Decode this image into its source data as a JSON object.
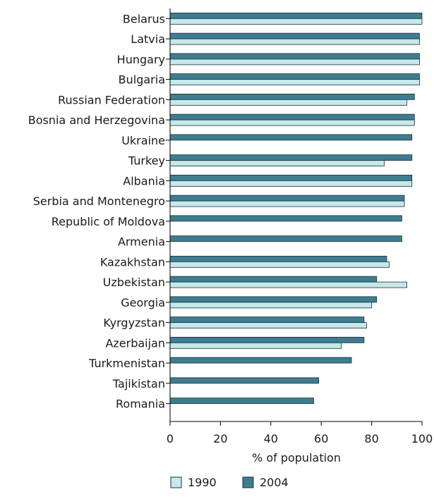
{
  "chart_data": {
    "type": "bar",
    "orientation": "horizontal",
    "categories": [
      "Belarus",
      "Latvia",
      "Hungary",
      "Bulgaria",
      "Russian Federation",
      "Bosnia and Herzegovina",
      "Ukraine",
      "Turkey",
      "Albania",
      "Serbia and Montenegro",
      "Republic of Moldova",
      "Armenia",
      "Kazakhstan",
      "Uzbekistan",
      "Georgia",
      "Kyrgyzstan",
      "Azerbaijan",
      "Turkmenistan",
      "Tajikistan",
      "Romania"
    ],
    "series": [
      {
        "name": "1990",
        "color": "#c5e8ea",
        "values": [
          100,
          99,
          99,
          99,
          94,
          97,
          null,
          85,
          96,
          93,
          null,
          null,
          87,
          94,
          80,
          78,
          68,
          null,
          null,
          null
        ]
      },
      {
        "name": "2004",
        "color": "#3e7d90",
        "values": [
          100,
          99,
          99,
          99,
          97,
          97,
          96,
          96,
          96,
          93,
          92,
          92,
          86,
          82,
          82,
          77,
          77,
          72,
          59,
          57
        ]
      }
    ],
    "xlabel": "% of population",
    "ylabel": "",
    "xlim": [
      0,
      100
    ],
    "xticks": [
      "0",
      "20",
      "40",
      "60",
      "80",
      "100"
    ],
    "grid": false,
    "legend_position": "bottom-center"
  }
}
